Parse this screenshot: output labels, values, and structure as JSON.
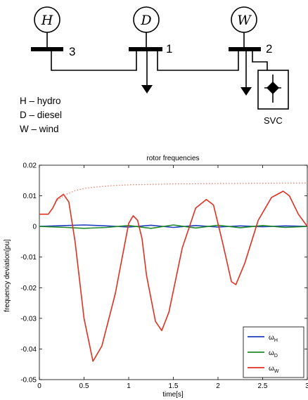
{
  "diagram": {
    "generators": [
      {
        "symbol": "H",
        "bus_label": "3"
      },
      {
        "symbol": "D",
        "bus_label": "1"
      },
      {
        "symbol": "W",
        "bus_label": "2"
      }
    ],
    "svc_label": "SVC",
    "legend_lines": [
      "H – hydro",
      "D – diesel",
      "W – wind"
    ]
  },
  "chart_data": {
    "type": "line",
    "title": "rotor frequencies",
    "xlabel": "time[s]",
    "ylabel": "frequency deviation[pu]",
    "xlim": [
      0,
      3
    ],
    "ylim": [
      -0.05,
      0.02
    ],
    "xticks": [
      0,
      0.5,
      1,
      1.5,
      2,
      2.5,
      3
    ],
    "xtick_labels": [
      "0",
      "0.5",
      "1",
      "1.5",
      "2",
      "2.5",
      "3"
    ],
    "yticks": [
      0.02,
      0.01,
      0,
      -0.01,
      -0.02,
      -0.03,
      -0.04,
      -0.05
    ],
    "ytick_labels": [
      "0.02",
      "0.01",
      "0",
      "-0.01",
      "-0.02",
      "-0.03",
      "-0.04",
      "-0.05"
    ],
    "grid": false,
    "legend_position": "bottom-right",
    "series": [
      {
        "name": "ωH",
        "legend_main": "ω",
        "legend_sub": "H",
        "color": "#1f3fbf",
        "x": [
          0,
          0.3,
          0.5,
          0.75,
          1.0,
          1.25,
          1.5,
          1.75,
          2.0,
          2.25,
          2.5,
          2.75,
          3.0
        ],
        "y": [
          0,
          0.0003,
          0.0005,
          0.0002,
          -0.0002,
          0.0004,
          -0.0003,
          0.0003,
          -0.0002,
          0.0002,
          -0.0001,
          0.0002,
          0
        ]
      },
      {
        "name": "ωD",
        "legend_main": "ω",
        "legend_sub": "D",
        "color": "#1f8a2a",
        "x": [
          0,
          0.3,
          0.5,
          0.75,
          1.0,
          1.25,
          1.5,
          1.75,
          2.0,
          2.25,
          2.5,
          2.75,
          3.0
        ],
        "y": [
          0,
          -0.0003,
          -0.0006,
          -0.0003,
          0.0003,
          -0.0006,
          0.0005,
          -0.0005,
          0.0004,
          -0.0004,
          0.0003,
          -0.0003,
          0
        ]
      },
      {
        "name": "ωW",
        "legend_main": "ω",
        "legend_sub": "W",
        "color": "#e03020",
        "x": [
          0,
          0.1,
          0.15,
          0.2,
          0.27,
          0.33,
          0.4,
          0.5,
          0.6,
          0.7,
          0.85,
          1.0,
          1.05,
          1.1,
          1.15,
          1.2,
          1.3,
          1.37,
          1.45,
          1.6,
          1.75,
          1.87,
          1.95,
          2.05,
          2.15,
          2.2,
          2.3,
          2.45,
          2.6,
          2.73,
          2.8,
          2.9,
          3.0
        ],
        "y": [
          0.004,
          0.004,
          0.006,
          0.009,
          0.0105,
          0.008,
          -0.005,
          -0.03,
          -0.044,
          -0.039,
          -0.022,
          0.001,
          0.0035,
          0.002,
          -0.004,
          -0.016,
          -0.031,
          -0.034,
          -0.028,
          -0.007,
          0.006,
          0.0088,
          0.007,
          -0.005,
          -0.018,
          -0.019,
          -0.012,
          0.002,
          0.0095,
          0.0115,
          0.01,
          0.004,
          0
        ]
      },
      {
        "name": "",
        "color": "#f08070",
        "dotted": true,
        "x": [
          0.2,
          0.3,
          0.4,
          0.5,
          0.6,
          0.8,
          1.0,
          1.2,
          1.5,
          2.0,
          2.5,
          3.0
        ],
        "y": [
          0.0085,
          0.0105,
          0.0117,
          0.0124,
          0.0128,
          0.0133,
          0.0136,
          0.0137,
          0.0139,
          0.014,
          0.0141,
          0.0142
        ]
      }
    ]
  }
}
